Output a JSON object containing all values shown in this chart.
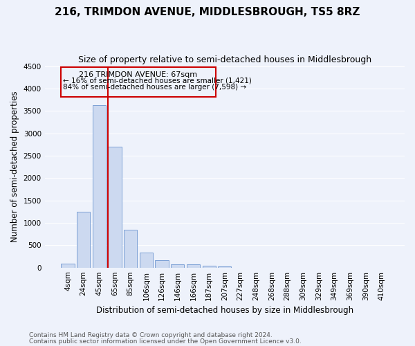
{
  "title": "216, TRIMDON AVENUE, MIDDLESBROUGH, TS5 8RZ",
  "subtitle": "Size of property relative to semi-detached houses in Middlesbrough",
  "xlabel": "Distribution of semi-detached houses by size in Middlesbrough",
  "ylabel": "Number of semi-detached properties",
  "categories": [
    "4sqm",
    "24sqm",
    "45sqm",
    "65sqm",
    "85sqm",
    "106sqm",
    "126sqm",
    "146sqm",
    "166sqm",
    "187sqm",
    "207sqm",
    "227sqm",
    "248sqm",
    "268sqm",
    "288sqm",
    "309sqm",
    "329sqm",
    "349sqm",
    "369sqm",
    "390sqm",
    "410sqm"
  ],
  "values": [
    90,
    1250,
    3620,
    2700,
    850,
    330,
    160,
    70,
    65,
    45,
    30,
    0,
    0,
    0,
    0,
    0,
    0,
    0,
    0,
    0,
    0
  ],
  "bar_color": "#ccd9f0",
  "bar_edge_color": "#7a9fd4",
  "property_label": "216 TRIMDON AVENUE: 67sqm",
  "pct_smaller": 16,
  "pct_larger": 84,
  "n_smaller": "1,421",
  "n_larger": "7,598",
  "vline_x": 2.57,
  "vline_color": "#cc0000",
  "annotation_box_color": "#cc0000",
  "ylim": [
    0,
    4500
  ],
  "yticks": [
    0,
    500,
    1000,
    1500,
    2000,
    2500,
    3000,
    3500,
    4000,
    4500
  ],
  "footer_line1": "Contains HM Land Registry data © Crown copyright and database right 2024.",
  "footer_line2": "Contains public sector information licensed under the Open Government Licence v3.0.",
  "bg_color": "#eef2fb",
  "grid_color": "#ffffff",
  "title_fontsize": 11,
  "subtitle_fontsize": 9,
  "axis_label_fontsize": 8.5,
  "tick_fontsize": 7.5,
  "footer_fontsize": 6.5
}
